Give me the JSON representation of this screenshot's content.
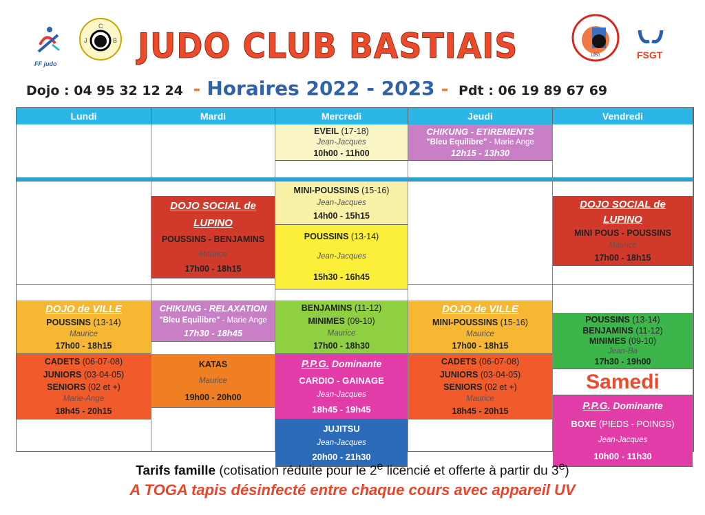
{
  "header": {
    "title": "JUDO CLUB BASTIAIS",
    "dojo_phone": "Dojo : 04 95 32 12 24",
    "schedule_title": "Horaires 2022 - 2023",
    "pdt_phone": "Pdt : 06 19 89 67 69",
    "logos": [
      {
        "name": "ff-judo-logo",
        "text": "FF judo"
      },
      {
        "name": "jcb-flower-logo",
        "text": "J C B"
      },
      {
        "name": "judo-club-bastiais-seal",
        "text": "JUDO-CLUB BASTIAIS 1950"
      },
      {
        "name": "fsgt-logo",
        "text": "FSGT"
      }
    ]
  },
  "colors": {
    "header_blue": "#2cb6e8",
    "title_red": "#ec4a2b",
    "title_blue": "#2f62a8"
  },
  "days": [
    "Lundi",
    "Mardi",
    "Mercredi",
    "Jeudi",
    "Vendredi"
  ],
  "blocks": [
    {
      "day": 0,
      "color": "#f6b733",
      "lines": [
        {
          "s": "venue",
          "t": "DOJO  de VILLE"
        },
        {
          "s": "group",
          "t": "POUSSINS",
          "a": "(13-14)"
        },
        {
          "s": "coach",
          "t": "Maurice"
        },
        {
          "s": "time",
          "t": "17h00 - 18h15"
        }
      ]
    },
    {
      "day": 0,
      "color": "#f15a2b",
      "lines": [
        {
          "s": "group",
          "t": "CADETS",
          "a": "(06-07-08)"
        },
        {
          "s": "group",
          "t": "JUNIORS",
          "a": "(03-04-05)"
        },
        {
          "s": "group",
          "t": "SENIORS",
          "a": "(02 et +)"
        },
        {
          "s": "coach",
          "t": "Marie-Ange"
        },
        {
          "s": "time",
          "t": "18h45 - 20h15"
        }
      ]
    },
    {
      "day": 1,
      "color": "#d13a2a",
      "lines": [
        {
          "s": "venue",
          "t": "DOJO  SOCIAL  de"
        },
        {
          "s": "venue",
          "t": "LUPINO"
        },
        {
          "s": "group",
          "t": "POUSSINS - BENJAMINS"
        },
        {
          "s": "coach",
          "t": "Maurice"
        },
        {
          "s": "time",
          "t": "17h00 - 18h15"
        }
      ]
    },
    {
      "day": 1,
      "color": "#c97fc6",
      "lines": [
        {
          "s": "wtitle",
          "t": "CHIKUNG - RELAXATION"
        },
        {
          "s": "wsub",
          "t": "\"Bleu Equilibre\"",
          "a": " - Marie Ange"
        },
        {
          "s": "wtime",
          "t": "17h30 - 18h45"
        }
      ]
    },
    {
      "day": 1,
      "color": "#f07f24",
      "lines": [
        {
          "s": "group",
          "t": "KATAS"
        },
        {
          "s": "coach",
          "t": "Maurice"
        },
        {
          "s": "time",
          "t": "19h00 - 20h00"
        }
      ]
    },
    {
      "day": 2,
      "color": "#f9f5c4",
      "lines": [
        {
          "s": "group",
          "t": "EVEIL",
          "a": "(17-18)"
        },
        {
          "s": "coach",
          "t": "Jean-Jacques"
        },
        {
          "s": "time",
          "t": "10h00 - 11h00"
        }
      ]
    },
    {
      "day": 2,
      "color": "#f9f1a6",
      "lines": [
        {
          "s": "group",
          "t": "MINI-POUSSINS",
          "a": "(15-16)"
        },
        {
          "s": "coach",
          "t": "Jean-Jacques"
        },
        {
          "s": "time",
          "t": "14h00 - 15h15"
        }
      ]
    },
    {
      "day": 2,
      "color": "#fcef3a",
      "lines": [
        {
          "s": "group",
          "t": "POUSSINS",
          "a": "(13-14)"
        },
        {
          "s": "coach",
          "t": "Jean-Jacques"
        },
        {
          "s": "time",
          "t": "15h30 - 16h45"
        }
      ]
    },
    {
      "day": 2,
      "color": "#8ed042",
      "lines": [
        {
          "s": "group",
          "t": "BENJAMINS",
          "a": "(11-12)"
        },
        {
          "s": "group",
          "t": "MINIMES",
          "a": "(09-10)"
        },
        {
          "s": "coach",
          "t": "Maurice"
        },
        {
          "s": "time",
          "t": "17h00 - 18h30"
        }
      ]
    },
    {
      "day": 2,
      "color": "#e23ca8",
      "lines": [
        {
          "s": "ppg",
          "t": "P.P.G.",
          "a": " Dominante"
        },
        {
          "s": "wgroup",
          "t": "CARDIO - GAINAGE"
        },
        {
          "s": "wcoach",
          "t": "Jean-Jacques"
        },
        {
          "s": "wgroup",
          "t": "18h45 - 19h45"
        }
      ]
    },
    {
      "day": 2,
      "color": "#2b6bb8",
      "lines": [
        {
          "s": "wgroup",
          "t": "JUJITSU"
        },
        {
          "s": "wcoach",
          "t": "Jean-Jacques"
        },
        {
          "s": "wgroup",
          "t": "20h00 - 21h30"
        }
      ]
    },
    {
      "day": 3,
      "color": "#c97fc6",
      "lines": [
        {
          "s": "wtitle",
          "t": "CHIKUNG - ETIREMENTS"
        },
        {
          "s": "wsub",
          "t": "\"Bleu Equilibre\"",
          "a": " - Marie Ange"
        },
        {
          "s": "wtime",
          "t": "12h15 - 13h30"
        }
      ]
    },
    {
      "day": 3,
      "color": "#f6b733",
      "lines": [
        {
          "s": "venue",
          "t": "DOJO  de VILLE"
        },
        {
          "s": "group",
          "t": "MINI-POUSSINS",
          "a": "(15-16)"
        },
        {
          "s": "coach",
          "t": "Maurice"
        },
        {
          "s": "time",
          "t": "17h00 - 18h15"
        }
      ]
    },
    {
      "day": 3,
      "color": "#f15a2b",
      "lines": [
        {
          "s": "group",
          "t": "CADETS",
          "a": "(06-07-08)"
        },
        {
          "s": "group",
          "t": "JUNIORS",
          "a": "(03-04-05)"
        },
        {
          "s": "group",
          "t": "SENIORS",
          "a": "(02 et +)"
        },
        {
          "s": "coach",
          "t": "Maurice"
        },
        {
          "s": "time",
          "t": "18h45 - 20h15"
        }
      ]
    },
    {
      "day": 4,
      "color": "#d13a2a",
      "lines": [
        {
          "s": "venue",
          "t": "DOJO  SOCIAL  de"
        },
        {
          "s": "venue",
          "t": "LUPINO"
        },
        {
          "s": "group",
          "t": "MINI POUS - POUSSINS"
        },
        {
          "s": "coach",
          "t": "Maurice"
        },
        {
          "s": "time",
          "t": "17h00 - 18h15"
        }
      ]
    },
    {
      "day": 4,
      "color": "#3cb54b",
      "lines": [
        {
          "s": "group",
          "t": "POUSSINS",
          "a": "(13-14)"
        },
        {
          "s": "group",
          "t": "BENJAMINS",
          "a": "(11-12)"
        },
        {
          "s": "group",
          "t": "MINIMES",
          "a": "(09-10)"
        },
        {
          "s": "coach",
          "t": "Jean-Ba"
        },
        {
          "s": "time",
          "t": "17h30 - 19h00"
        }
      ]
    },
    {
      "day": 4,
      "color": "#ffffff",
      "lines": [
        {
          "s": "samedi",
          "t": "Samedi"
        }
      ]
    },
    {
      "day": 4,
      "color": "#e23ca8",
      "lines": [
        {
          "s": "ppg",
          "t": "P.P.G.",
          "a": " Dominante"
        },
        {
          "s": "wgroup",
          "t": "BOXE",
          "a": "(PIEDS - POINGS)"
        },
        {
          "s": "wcoach",
          "t": "Jean-Jacques"
        },
        {
          "s": "wgroup",
          "t": "10h00 - 11h30"
        }
      ]
    }
  ],
  "footer": {
    "tarifs_bold": "Tarifs famille",
    "tarifs_a": " (cotisation réduite pour le 2",
    "sup1": "e",
    "tarifs_b": " licencié et offerte à partir du 3",
    "sup2": "e",
    "tarifs_c": ")",
    "notice": "A TOGA tapis désinfecté entre chaque cours avec appareil UV"
  }
}
